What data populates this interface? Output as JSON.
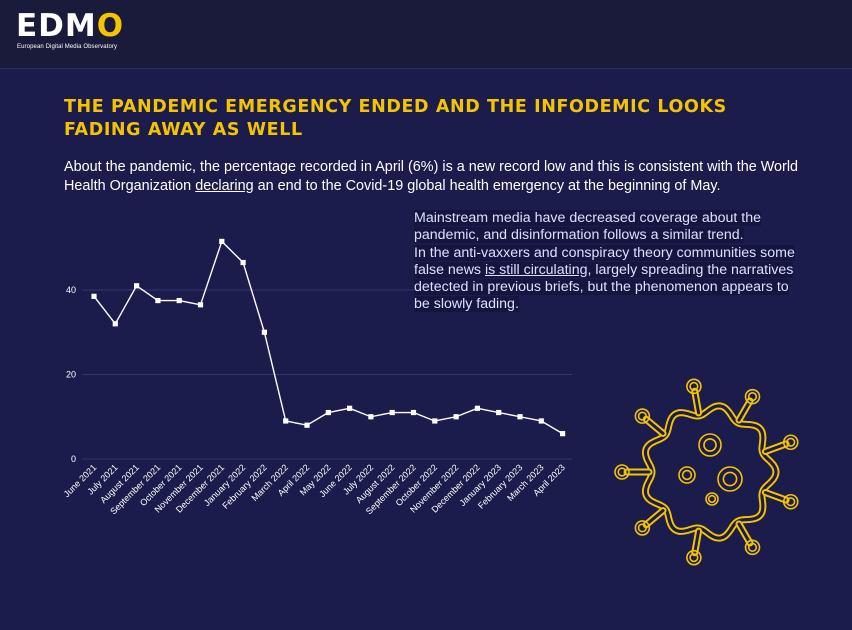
{
  "header": {
    "logo_main": "EDM",
    "logo_o": "O",
    "logo_subtitle": "European Digital Media Observatory"
  },
  "title": "The pandemic emergency ended and the infodemic looks fading away as well",
  "intro": {
    "before": "About the pandemic, the percentage recorded in April (6%) is a new record low and this is consistent with the World Health Organization ",
    "link": "declaring",
    "after": " an end to the Covid-19 global health emergency at the beginning of May."
  },
  "side_text": {
    "p1": "Mainstream media have decreased coverage about the pandemic, and disinformation follows a similar trend.",
    "p2_before": "In the anti-vaxxers and conspiracy theory communities some false news ",
    "p2_link": "is still circulating",
    "p2_after": ", largely spreading the narratives detected in previous briefs, but the phenomenon appears to be slowly fading."
  },
  "colors": {
    "accent": "#f5c400",
    "background": "#1c1c4c",
    "line": "#ffffff"
  },
  "decor": {
    "virus_icon": "virus-icon"
  },
  "chart_data": {
    "type": "line",
    "categories": [
      "June 2021",
      "July 2021",
      "August 2021",
      "September 2021",
      "October 2021",
      "November 2021",
      "December 2021",
      "January 2022",
      "February 2022",
      "March 2022",
      "April 2022",
      "May 2022",
      "June 2022",
      "July 2022",
      "August 2022",
      "September 2022",
      "October 2022",
      "November 2022",
      "December 2022",
      "January 2023",
      "February 2023",
      "March 2023",
      "April 2023"
    ],
    "values": [
      38.5,
      32,
      41,
      37.5,
      37.5,
      36.5,
      51.5,
      46.5,
      30,
      9,
      8,
      11,
      12,
      10,
      11,
      11,
      9,
      10,
      12,
      11,
      10,
      9,
      6
    ],
    "yticks": [
      0,
      20,
      40
    ],
    "ylim": [
      0,
      53
    ],
    "grid": true,
    "title": "",
    "xlabel": "",
    "ylabel": ""
  }
}
